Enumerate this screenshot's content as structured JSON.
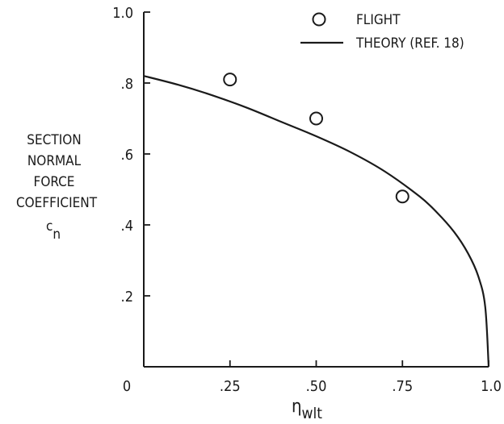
{
  "chart_data": {
    "type": "scatter",
    "xlim": [
      0,
      1.0
    ],
    "ylim": [
      0,
      1.0
    ],
    "x_ticks": [
      "0",
      ".25",
      ".50",
      ".75",
      "1.0"
    ],
    "y_ticks": [
      ".2",
      ".4",
      ".6",
      ".8",
      "1.0"
    ],
    "xlabel_main": "η",
    "xlabel_sub": "wlt",
    "ylabel_lines": [
      "SECTION",
      "NORMAL",
      "FORCE",
      "COEFFICIENT"
    ],
    "ylabel_symbol_main": "c",
    "ylabel_symbol_sub": "n",
    "legend_position": "top-right",
    "series": [
      {
        "name": "FLIGHT",
        "kind": "points",
        "marker": "open-circle",
        "points": [
          {
            "x": 0.25,
            "y": 0.81
          },
          {
            "x": 0.5,
            "y": 0.7
          },
          {
            "x": 0.75,
            "y": 0.48
          }
        ]
      },
      {
        "name": "THEORY (REF. 18)",
        "kind": "line",
        "points": [
          {
            "x": 0.0,
            "y": 0.82
          },
          {
            "x": 0.1,
            "y": 0.795
          },
          {
            "x": 0.2,
            "y": 0.765
          },
          {
            "x": 0.3,
            "y": 0.73
          },
          {
            "x": 0.4,
            "y": 0.69
          },
          {
            "x": 0.5,
            "y": 0.65
          },
          {
            "x": 0.6,
            "y": 0.605
          },
          {
            "x": 0.7,
            "y": 0.55
          },
          {
            "x": 0.8,
            "y": 0.48
          },
          {
            "x": 0.85,
            "y": 0.435
          },
          {
            "x": 0.9,
            "y": 0.38
          },
          {
            "x": 0.94,
            "y": 0.32
          },
          {
            "x": 0.97,
            "y": 0.255
          },
          {
            "x": 0.99,
            "y": 0.17
          },
          {
            "x": 1.0,
            "y": 0.0
          }
        ]
      }
    ]
  }
}
